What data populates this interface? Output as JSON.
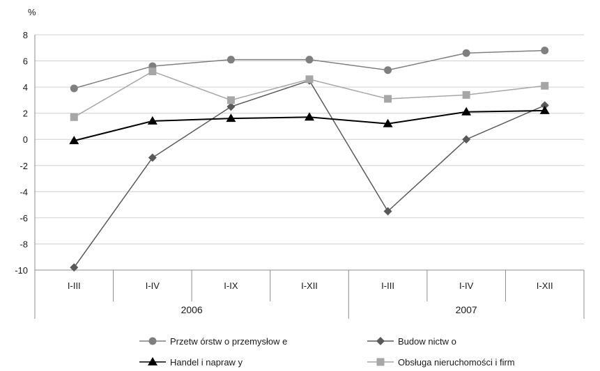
{
  "chart_data": {
    "type": "line",
    "unit_label": "%",
    "ylim": [
      -10,
      8
    ],
    "y_ticks": [
      8,
      6,
      4,
      2,
      0,
      -2,
      -4,
      -6,
      -8,
      -10
    ],
    "grid": "horizontal",
    "legend_position": "bottom",
    "categories": [
      "I-III",
      "I-IV",
      "I-IX",
      "I-XII",
      "I-III",
      "I-IV",
      "I-XII"
    ],
    "groups": [
      {
        "label": "2006",
        "span": 4
      },
      {
        "label": "2007",
        "span": 3
      }
    ],
    "series": [
      {
        "name": "Przetw órstw o przemysłow e",
        "color": "#7f7f7f",
        "marker": "circle",
        "values": [
          3.9,
          5.6,
          6.1,
          6.1,
          5.3,
          6.6,
          6.8
        ]
      },
      {
        "name": "Budow nictw o",
        "color": "#595959",
        "marker": "diamond",
        "values": [
          -9.8,
          -1.4,
          2.5,
          4.5,
          -5.5,
          0.0,
          2.6
        ]
      },
      {
        "name": "Handel i napraw y",
        "color": "#000000",
        "marker": "triangle",
        "values": [
          -0.1,
          1.4,
          1.6,
          1.7,
          1.2,
          2.1,
          2.2
        ]
      },
      {
        "name": "Obsługa nieruchomości i firm",
        "color": "#a6a6a6",
        "marker": "square",
        "values": [
          1.7,
          5.2,
          3.0,
          4.6,
          3.1,
          3.4,
          4.1
        ]
      }
    ]
  }
}
